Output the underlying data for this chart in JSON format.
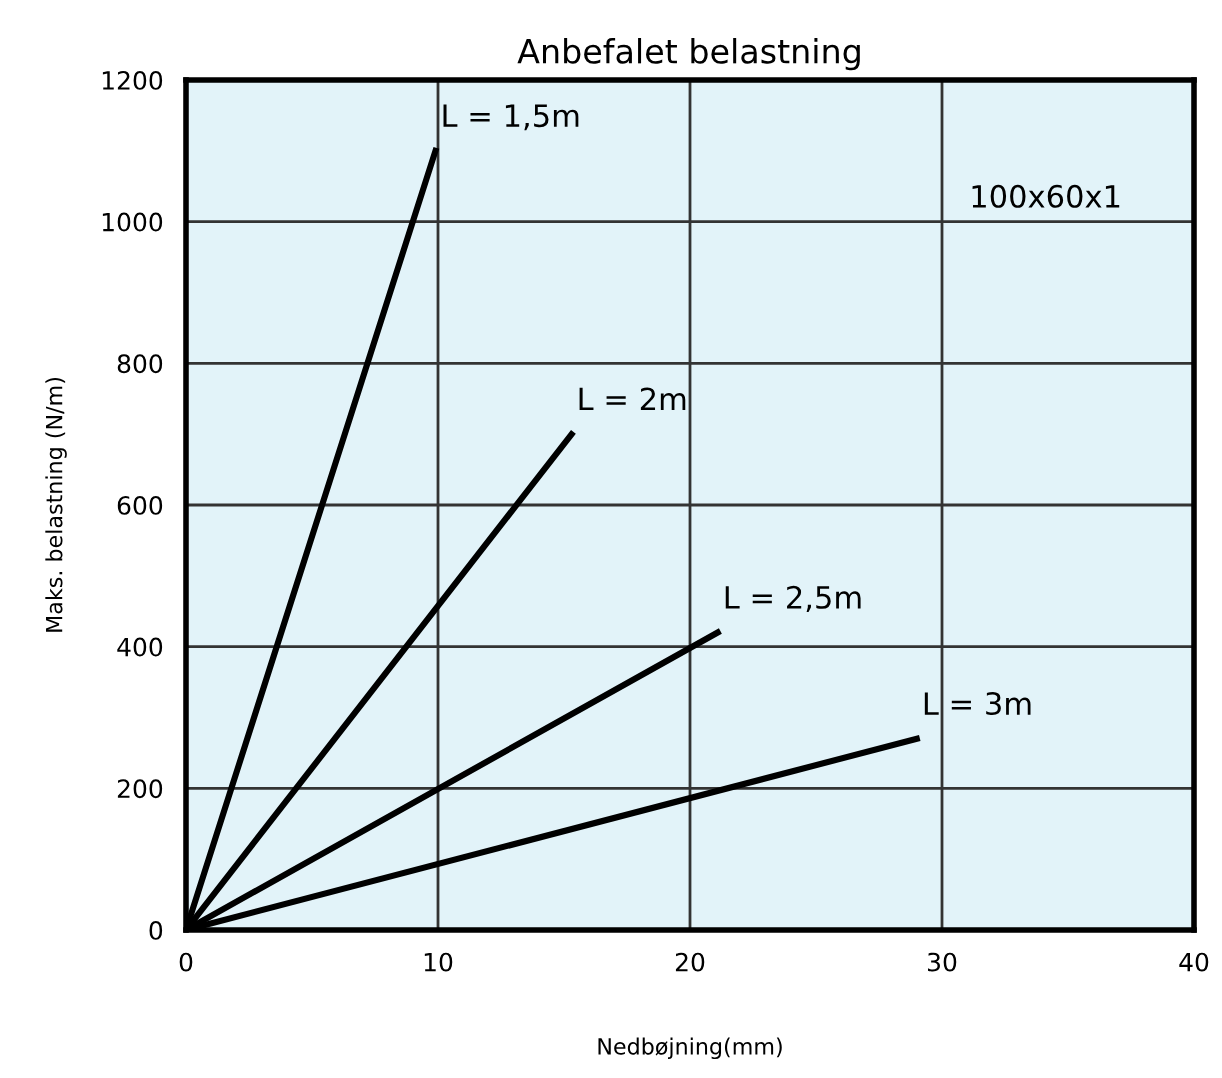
{
  "chart_data": {
    "type": "line",
    "title": "Anbefalet belastning",
    "xlabel": "Nedbøjning(mm)",
    "ylabel": "Maks. belastning (N/m)",
    "series": [
      {
        "name": "L = 1,5m",
        "color": "#000000",
        "x": [
          0,
          9.9
        ],
        "values": [
          0,
          1100
        ]
      },
      {
        "name": "L = 2m",
        "color": "#000000",
        "x": [
          0,
          15.3
        ],
        "values": [
          0,
          700
        ]
      },
      {
        "name": "L = 2,5m",
        "color": "#000000",
        "x": [
          0,
          21.1
        ],
        "values": [
          0,
          420
        ]
      },
      {
        "name": "L = 3m",
        "color": "#000000",
        "x": [
          0,
          29
        ],
        "values": [
          0,
          270
        ]
      }
    ],
    "annotations": [
      "100x60x1"
    ],
    "xlim": [
      0,
      40
    ],
    "ylim": [
      0,
      1200
    ],
    "xticks": [
      0,
      10,
      20,
      30,
      40
    ],
    "yticks": [
      0,
      200,
      400,
      600,
      800,
      1000,
      1200
    ],
    "grid": true,
    "legend": false,
    "marker": "none",
    "line_style": "solid"
  }
}
